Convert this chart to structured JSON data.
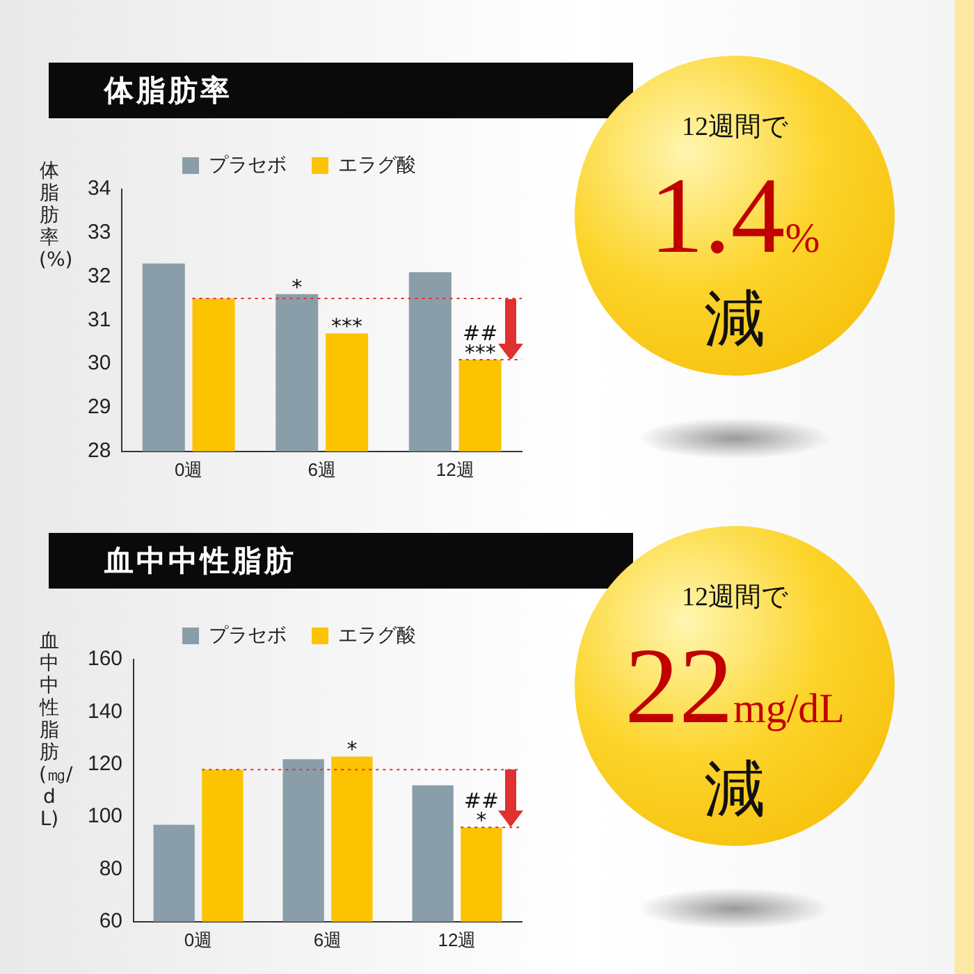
{
  "chart_data": [
    {
      "type": "bar",
      "title": "体脂肪率",
      "ylabel": "体脂肪率(%)",
      "categories": [
        "0週",
        "6週",
        "12週"
      ],
      "series": [
        {
          "name": "プラセボ",
          "color": "#8a9eaa",
          "values": [
            32.3,
            31.6,
            32.1
          ]
        },
        {
          "name": "エラグ酸",
          "color": "#fcc300",
          "values": [
            31.5,
            30.7,
            30.1
          ]
        }
      ],
      "ylim": [
        28,
        34
      ],
      "yticks": [
        28,
        29,
        30,
        31,
        32,
        33,
        34
      ],
      "grid": false,
      "legend": "top",
      "ref_lines": [
        {
          "axis": "y",
          "value": 31.5,
          "color": "#e03030",
          "line_style": "dotted"
        },
        {
          "axis": "y",
          "value": 30.1,
          "color": "#e03030",
          "line_style": "dotted"
        }
      ],
      "annotations": [
        "12週間で",
        "1.4%",
        "減",
        {
          "text": "*",
          "x": "6週",
          "y": 31.6
        },
        {
          "text": "***",
          "x": "6週",
          "y": 30.7
        },
        {
          "text": "##\n***",
          "x": "12週",
          "y": 30.1
        }
      ]
    },
    {
      "type": "bar",
      "title": "血中中性脂肪",
      "ylabel": "血中中性脂肪(㎎/dL)",
      "categories": [
        "0週",
        "6週",
        "12週"
      ],
      "series": [
        {
          "name": "プラセボ",
          "color": "#8a9eaa",
          "values": [
            97,
            122,
            112
          ]
        },
        {
          "name": "エラグ酸",
          "color": "#fcc300",
          "values": [
            118,
            123,
            96
          ]
        }
      ],
      "ylim": [
        60,
        160
      ],
      "yticks": [
        60,
        80,
        100,
        120,
        140,
        160
      ],
      "grid": false,
      "legend": "top",
      "ref_lines": [
        {
          "axis": "y",
          "value": 118,
          "color": "#e03030",
          "line_style": "dotted"
        },
        {
          "axis": "y",
          "value": 96,
          "color": "#e03030",
          "line_style": "dotted"
        }
      ],
      "annotations": [
        "12週間で",
        "22mg/dL",
        "減",
        {
          "text": "*",
          "x": "6週",
          "y": 123
        },
        {
          "text": "##\n*",
          "x": "12週",
          "y": 96
        }
      ]
    }
  ]
}
